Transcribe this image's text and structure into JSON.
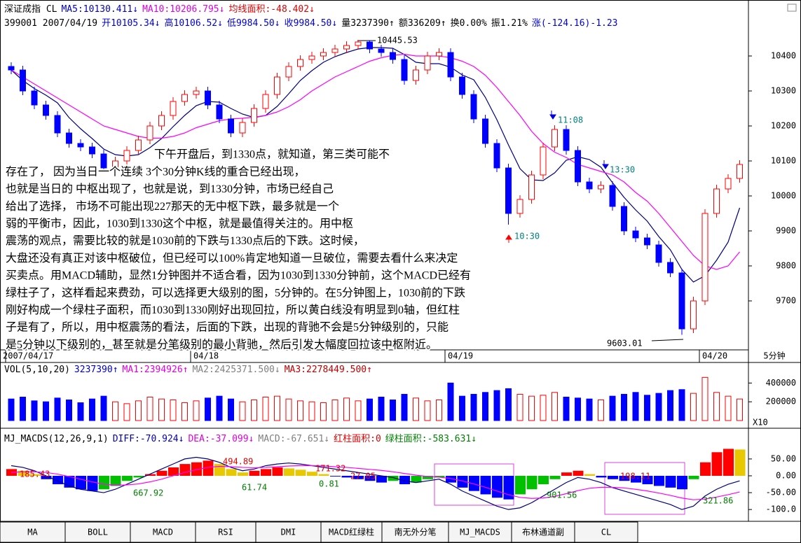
{
  "header": {
    "line1": [
      {
        "text": "深证成指 CL",
        "color": "#000000"
      },
      {
        "text": "MA5:10130.411↓",
        "color": "#0000c0"
      },
      {
        "text": "MA10:10206.795↓",
        "color": "#e000e0"
      },
      {
        "text": "均线面积:-48.402↓",
        "color": "#e00000"
      }
    ],
    "line2": [
      {
        "text": "399001 2007/04/19",
        "color": "#000000"
      },
      {
        "text": "开10105.34↓",
        "color": "#0000e0"
      },
      {
        "text": "高10106.52↓",
        "color": "#0000e0"
      },
      {
        "text": "低9984.50↓",
        "color": "#0000e0"
      },
      {
        "text": "收9984.50↓",
        "color": "#0000e0"
      },
      {
        "text": "量3237390↑",
        "color": "#000000"
      },
      {
        "text": "额336209↑",
        "color": "#000000"
      },
      {
        "text": "换0.00%",
        "color": "#000000"
      },
      {
        "text": "振1.21%",
        "color": "#000000"
      },
      {
        "text": "涨(-124.16)-1.23",
        "color": "#0000e0"
      }
    ],
    "volume": [
      {
        "text": "VOL(5,10,20)",
        "color": "#000000"
      },
      {
        "text": "3237390↑",
        "color": "#0000c0"
      },
      {
        "text": "MA1:2394926↑",
        "color": "#e000e0"
      },
      {
        "text": "MA2:2425371.500↓",
        "color": "#808080"
      },
      {
        "text": "MA3:2278449.500↑",
        "color": "#c00000"
      }
    ],
    "macd": [
      {
        "text": "MJ_MACDS(12,26,9,1)",
        "color": "#000000"
      },
      {
        "text": "DIFF:-70.924↓",
        "color": "#0000c0"
      },
      {
        "text": "DEA:-37.099↓",
        "color": "#e000e0"
      },
      {
        "text": "MACD:-67.651↓",
        "color": "#808080"
      },
      {
        "text": "红柱面积:0",
        "color": "#e00000"
      },
      {
        "text": "绿柱面积:-583.631↓",
        "color": "#008000"
      }
    ]
  },
  "chart_data": [
    {
      "type": "candlestick",
      "categories": [
        "2007/04/17",
        null,
        null,
        null,
        null,
        null,
        null,
        null,
        null,
        null,
        null,
        null,
        null,
        null,
        null,
        null,
        "04/18",
        null,
        null,
        null,
        null,
        null,
        null,
        null,
        null,
        null,
        null,
        null,
        null,
        null,
        null,
        null,
        null,
        null,
        null,
        null,
        null,
        null,
        "04/19",
        null,
        null,
        null,
        null,
        null,
        null,
        null,
        null,
        null,
        null,
        null,
        null,
        null,
        null,
        null,
        null,
        null,
        null,
        null,
        null,
        null,
        "04/20",
        null,
        null,
        null
      ],
      "candles": [
        [
          10370,
          10382,
          10348,
          10360
        ],
        [
          10360,
          10372,
          10288,
          10300
        ],
        [
          10300,
          10312,
          10248,
          10260
        ],
        [
          10260,
          10272,
          10218,
          10230
        ],
        [
          10230,
          10242,
          10168,
          10180
        ],
        [
          10180,
          10192,
          10138,
          10150
        ],
        [
          10150,
          10162,
          10128,
          10140
        ],
        [
          10140,
          10152,
          10108,
          10120
        ],
        [
          10120,
          10132,
          10068,
          10080
        ],
        [
          10080,
          10112,
          10068,
          10100
        ],
        [
          10100,
          10142,
          10088,
          10130
        ],
        [
          10130,
          10172,
          10118,
          10160
        ],
        [
          10160,
          10212,
          10148,
          10200
        ],
        [
          10200,
          10242,
          10188,
          10230
        ],
        [
          10230,
          10282,
          10218,
          10270
        ],
        [
          10270,
          10302,
          10258,
          10290
        ],
        [
          10290,
          10312,
          10278,
          10300
        ],
        [
          10300,
          10312,
          10248,
          10260
        ],
        [
          10260,
          10272,
          10208,
          10220
        ],
        [
          10220,
          10232,
          10168,
          10180
        ],
        [
          10180,
          10222,
          10168,
          10210
        ],
        [
          10210,
          10262,
          10198,
          10250
        ],
        [
          10250,
          10302,
          10238,
          10290
        ],
        [
          10290,
          10352,
          10278,
          10340
        ],
        [
          10340,
          10382,
          10328,
          10370
        ],
        [
          10370,
          10402,
          10358,
          10390
        ],
        [
          10390,
          10412,
          10378,
          10400
        ],
        [
          10400,
          10422,
          10388,
          10410
        ],
        [
          10410,
          10432,
          10398,
          10420
        ],
        [
          10420,
          10442,
          10408,
          10430
        ],
        [
          10430,
          10445.53,
          10418,
          10440
        ],
        [
          10440,
          10444,
          10408,
          10420
        ],
        [
          10420,
          10432,
          10398,
          10410
        ],
        [
          10410,
          10422,
          10378,
          10390
        ],
        [
          10390,
          10402,
          10318,
          10330
        ],
        [
          10330,
          10372,
          10318,
          10360
        ],
        [
          10360,
          10412,
          10348,
          10400
        ],
        [
          10400,
          10422,
          10388,
          10410
        ],
        [
          10410,
          10422,
          10328,
          10340
        ],
        [
          10340,
          10352,
          10278,
          10290
        ],
        [
          10290,
          10302,
          10208,
          10220
        ],
        [
          10220,
          10232,
          10138,
          10150
        ],
        [
          10150,
          10162,
          10068,
          10080
        ],
        [
          10080,
          10092,
          9918,
          9950
        ],
        [
          9950,
          10002,
          9938,
          9990
        ],
        [
          9990,
          10072,
          9978,
          10060
        ],
        [
          10060,
          10152,
          10048,
          10140
        ],
        [
          10140,
          10202,
          10128,
          10190
        ],
        [
          10190,
          10202,
          10118,
          10130
        ],
        [
          10130,
          10142,
          10028,
          10040
        ],
        [
          10040,
          10052,
          10008,
          10020
        ],
        [
          10020,
          10042,
          10008,
          10030
        ],
        [
          10030,
          10042,
          9958,
          9970
        ],
        [
          9970,
          9982,
          9888,
          9900
        ],
        [
          9900,
          9912,
          9868,
          9880
        ],
        [
          9880,
          9892,
          9848,
          9860
        ],
        [
          9860,
          9872,
          9798,
          9810
        ],
        [
          9810,
          9822,
          9768,
          9780
        ],
        [
          9780,
          9792,
          9603.01,
          9620
        ],
        [
          9620,
          9712,
          9608,
          9700
        ],
        [
          9700,
          9962,
          9688,
          9950
        ],
        [
          9950,
          10032,
          9938,
          10020
        ],
        [
          10020,
          10062,
          10008,
          10050
        ],
        [
          10050,
          10102,
          10038,
          10090
        ]
      ],
      "up_color": "#ff0000",
      "down_color": "#0000ff",
      "lines": [
        {
          "color": "#000080",
          "values": [
            10360,
            10330,
            10307,
            10288,
            10266,
            10224,
            10192,
            10164,
            10134,
            10118,
            10114,
            10118,
            10138,
            10164,
            10198,
            10230,
            10258,
            10270,
            10268,
            10250,
            10234,
            10224,
            10230,
            10256,
            10292,
            10330,
            10358,
            10382,
            10398,
            10410,
            10420,
            10424,
            10424,
            10422,
            10404,
            10382,
            10378,
            10378,
            10368,
            10346,
            10332,
            10282,
            10218,
            10146,
            10078,
            10046,
            10044,
            10066,
            10102,
            10112,
            10104,
            10082,
            10038,
            9996,
            9960,
            9928,
            9884,
            9846,
            9790,
            9754,
            9772,
            9816,
            9868,
            9966
          ]
        },
        {
          "color": "#ff00ff",
          "values": [
            10360,
            10340,
            10320,
            10300,
            10280,
            10260,
            10240,
            10220,
            10200,
            10190,
            10180,
            10170,
            10165,
            10165,
            10170,
            10180,
            10195,
            10205,
            10215,
            10220,
            10222,
            10225,
            10230,
            10240,
            10255,
            10275,
            10300,
            10320,
            10340,
            10355,
            10370,
            10385,
            10395,
            10402,
            10405,
            10400,
            10400,
            10400,
            10395,
            10385,
            10370,
            10345,
            10310,
            10270,
            10230,
            10185,
            10150,
            10125,
            10110,
            10090,
            10080,
            10070,
            10060,
            10040,
            10010,
            9985,
            9950,
            9910,
            9870,
            9830,
            9800,
            9790,
            9800,
            9840
          ]
        }
      ],
      "ylim": [
        9560,
        10476
      ],
      "yticks": [
        10400,
        10300,
        10200,
        10100,
        10000,
        9900,
        9800,
        9700
      ],
      "annotations": [
        {
          "text": "10445.53",
          "color": "#000000"
        },
        {
          "text": "9603.01",
          "color": "#000000"
        },
        {
          "text": "11:08",
          "color": "#008080"
        },
        {
          "text": "13:30",
          "color": "#008080"
        },
        {
          "text": "10:30",
          "color": "#008080"
        }
      ],
      "period_label": "5分钟"
    },
    {
      "type": "bar",
      "values": [
        230000,
        250000,
        210000,
        200000,
        240000,
        220000,
        190000,
        230000,
        260000,
        200000,
        180000,
        210000,
        250000,
        230000,
        220000,
        190000,
        210000,
        240000,
        260000,
        230000,
        200000,
        220000,
        250000,
        260000,
        230000,
        210000,
        200000,
        190000,
        220000,
        240000,
        210000,
        230000,
        250000,
        220000,
        280000,
        240000,
        210000,
        220000,
        400000,
        260000,
        280000,
        300000,
        320000,
        340000,
        280000,
        260000,
        270000,
        300000,
        250000,
        240000,
        230000,
        220000,
        260000,
        280000,
        300000,
        270000,
        290000,
        320000,
        330000,
        290000,
        460000,
        300000,
        260000,
        230000
      ],
      "ylim": [
        0,
        470000
      ],
      "yticks": [
        400000,
        200000
      ],
      "scale_label": "X10"
    },
    {
      "type": "macd",
      "values": [
        20,
        15,
        5,
        -10,
        -25,
        -35,
        -40,
        -45,
        -40,
        -30,
        -15,
        -5,
        5,
        15,
        25,
        35,
        40,
        45,
        35,
        20,
        10,
        15,
        20,
        25,
        22,
        18,
        12,
        5,
        -2,
        -5,
        -10,
        -15,
        -20,
        -15,
        -25,
        -20,
        -10,
        -5,
        -20,
        -35,
        -45,
        -55,
        -65,
        -70,
        -55,
        -40,
        -25,
        -10,
        10,
        15,
        5,
        -5,
        -10,
        -15,
        -20,
        -25,
        -30,
        -35,
        -40,
        -10,
        40,
        70,
        80,
        78
      ],
      "lines": [
        {
          "color": "#000080",
          "values": [
            30,
            25,
            15,
            0,
            -15,
            -30,
            -40,
            -45,
            -50,
            -40,
            -25,
            -10,
            5,
            20,
            35,
            50,
            55,
            50,
            40,
            25,
            15,
            20,
            30,
            35,
            38,
            35,
            30,
            25,
            20,
            15,
            10,
            5,
            0,
            -5,
            -15,
            -20,
            -15,
            -10,
            -25,
            -45,
            -60,
            -75,
            -90,
            -100,
            -95,
            -80,
            -60,
            -40,
            -20,
            -5,
            -10,
            -20,
            -35,
            -45,
            -55,
            -65,
            -75,
            -85,
            -100,
            -90,
            -60,
            -40,
            -25,
            -15
          ]
        },
        {
          "color": "#ff00ff",
          "values": [
            10,
            12,
            12,
            10,
            5,
            -2,
            -10,
            -18,
            -25,
            -28,
            -27,
            -24,
            -18,
            -10,
            0,
            10,
            18,
            25,
            28,
            27,
            25,
            24,
            25,
            27,
            29,
            30,
            30,
            29,
            27,
            25,
            22,
            19,
            16,
            12,
            7,
            2,
            -2,
            -4,
            -8,
            -15,
            -24,
            -34,
            -45,
            -56,
            -64,
            -67,
            -66,
            -61,
            -53,
            -44,
            -37,
            -34,
            -34,
            -36,
            -40,
            -45,
            -51,
            -58,
            -66,
            -71,
            -69,
            -63,
            -56,
            -48
          ]
        }
      ],
      "bar_colors": {
        "rising_positive": "#ff0000",
        "falling_positive": "#e8c800",
        "falling_negative": "#0000ff",
        "rising_negative": "#00c000"
      },
      "ylim": [
        -135,
        83
      ],
      "yticks": [
        {
          "value": 50,
          "label": "50.00"
        },
        {
          "value": 0,
          "label": "0.00"
        },
        {
          "value": -50,
          "label": "-50.00"
        },
        {
          "value": -100,
          "label": "-100.0"
        }
      ],
      "area_labels": [
        {
          "value": 185.43,
          "color": "#e00000"
        },
        {
          "value": 667.92,
          "color": "#008000"
        },
        {
          "value": 494.89,
          "color": "#e00000"
        },
        {
          "value": 61.74,
          "color": "#008000"
        },
        {
          "value": 171.32,
          "color": "#e00000"
        },
        {
          "value": 0.81,
          "color": "#008000"
        },
        {
          "value": 27.05,
          "color": "#e00000"
        },
        {
          "value": 901.56,
          "color": "#008000"
        },
        {
          "value": 198.11,
          "color": "#e00000"
        },
        {
          "value": 321.86,
          "color": "#008000"
        }
      ]
    }
  ],
  "note_lines": [
    "下午开盘后，到1330点，就知道，第三类可能不",
    "存在了，       因为当日一个连续  3个30分钟K线的重合已经出现，",
    "也就是当日的   中枢出现了，也就是说，到1330分钟，市场已经自己",
    "给出了选择，    市场不可能出现227那天的无中枢下跌，最多就是一个",
    "弱的平衡市，因此，1030到1330这个中枢，就是最值得关注的。用中枢",
    "震荡的观点，需要比较的就是1030前的下跌与1330点后的下跌。这时候，",
    "大盘还没有真正对该中枢破位，但已经可以100%肯定地知道一旦破位，需要去看什么来决定",
    "买卖点。用MACD辅助，显然1分钟图并不适合看，因为1030到1330分钟前，这个MACD已经有",
    "绿柱子了，这样看起来费劲，可以选择更大级别的图，5分钟的。在5分钟图上，1030前的下跌",
    "刚好构成一个绿柱子面积，而1030到1330刚好出现回拉，所以黄白线没有明显到0轴，但红柱",
    "子是有了，所以，用中枢震荡的看法，后面的下跌，出现的背驰不会是5分钟级别的，只能",
    "是5分钟以下级别的，甚至就是分笔级别的最小背驰，然后引发大幅度回拉该中枢附近。"
  ],
  "tabs": [
    "MA",
    "BOLL",
    "MACD",
    "RSI",
    "DMI",
    "MACD红绿柱",
    "南无外分笔",
    "MJ_MACDS",
    "布林通道副",
    "CL"
  ]
}
